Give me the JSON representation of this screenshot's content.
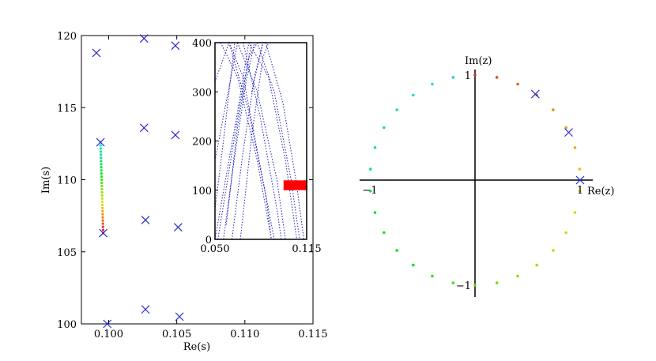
{
  "chart_data": [
    {
      "id": "left",
      "type": "scatter",
      "xlabel": "Re(s)",
      "ylabel": "Im(s)",
      "xlim": [
        0.098,
        0.115
      ],
      "ylim": [
        100,
        120
      ],
      "xticks": [
        0.1,
        0.105,
        0.11,
        0.115
      ],
      "xtick_labels": [
        "0.100",
        "0.105",
        "0.110",
        "0.115"
      ],
      "yticks": [
        100,
        105,
        110,
        115,
        120
      ],
      "ytick_labels": [
        "100",
        "105",
        "110",
        "115",
        "120"
      ],
      "grid": false,
      "marker_color": "#2b2bd6",
      "series": [
        {
          "marker": "x",
          "points": [
            [
              0.0991,
              118.8
            ],
            [
              0.1026,
              119.8
            ],
            [
              0.1049,
              119.3
            ],
            [
              0.0994,
              112.6
            ],
            [
              0.1026,
              113.6
            ],
            [
              0.1049,
              113.1
            ],
            [
              0.0996,
              106.3
            ],
            [
              0.1027,
              107.2
            ],
            [
              0.1051,
              106.7
            ],
            [
              0.0999,
              100.0
            ],
            [
              0.1027,
              101.0
            ],
            [
              0.1052,
              100.5
            ]
          ]
        },
        {
          "marker": "dot-gradient",
          "gradient": "rainbow",
          "from": [
            0.0994,
            112.6
          ],
          "to": [
            0.0996,
            106.3
          ],
          "count": 30
        }
      ]
    },
    {
      "id": "inset",
      "type": "line",
      "xlim": [
        0.05,
        0.115
      ],
      "ylim": [
        0,
        400
      ],
      "xticks": [
        0.05,
        0.115
      ],
      "xtick_labels": [
        "0.050",
        "0.115"
      ],
      "yticks": [
        0,
        100,
        200,
        300,
        400
      ],
      "ytick_labels": [
        "0",
        "100",
        "200",
        "300",
        "400"
      ],
      "line_style": "dotted",
      "line_color": "#1f1fbf",
      "highlight_box": {
        "x": [
          0.0986,
          0.115
        ],
        "y": [
          100,
          120
        ],
        "color": "#ff0000"
      },
      "series": [
        {
          "points": [
            [
              0.05,
              0
            ],
            [
              0.058,
              130
            ],
            [
              0.066,
              260
            ],
            [
              0.074,
              400
            ]
          ]
        },
        {
          "points": [
            [
              0.05,
              60
            ],
            [
              0.056,
              200
            ],
            [
              0.06,
              300
            ],
            [
              0.064,
              400
            ]
          ]
        },
        {
          "points": [
            [
              0.05,
              160
            ],
            [
              0.058,
              280
            ],
            [
              0.066,
              400
            ]
          ]
        },
        {
          "points": [
            [
              0.052,
              0
            ],
            [
              0.06,
              140
            ],
            [
              0.068,
              280
            ],
            [
              0.076,
              400
            ]
          ]
        },
        {
          "points": [
            [
              0.056,
              0
            ],
            [
              0.064,
              170
            ],
            [
              0.072,
              320
            ],
            [
              0.078,
              400
            ]
          ]
        },
        {
          "points": [
            [
              0.058,
              30
            ],
            [
              0.066,
              230
            ],
            [
              0.074,
              370
            ],
            [
              0.08,
              400
            ]
          ]
        },
        {
          "points": [
            [
              0.062,
              0
            ],
            [
              0.07,
              180
            ],
            [
              0.078,
              330
            ],
            [
              0.084,
              400
            ]
          ]
        },
        {
          "points": [
            [
              0.068,
              0
            ],
            [
              0.076,
              210
            ],
            [
              0.084,
              370
            ],
            [
              0.088,
              400
            ]
          ]
        },
        {
          "points": [
            [
              0.05,
              320
            ],
            [
              0.06,
              400
            ],
            [
              0.07,
              330
            ],
            [
              0.082,
              150
            ],
            [
              0.092,
              0
            ]
          ]
        },
        {
          "points": [
            [
              0.054,
              400
            ],
            [
              0.066,
              330
            ],
            [
              0.08,
              160
            ],
            [
              0.09,
              0
            ]
          ]
        },
        {
          "points": [
            [
              0.066,
              400
            ],
            [
              0.08,
              300
            ],
            [
              0.094,
              120
            ],
            [
              0.1,
              0
            ]
          ]
        },
        {
          "points": [
            [
              0.074,
              400
            ],
            [
              0.088,
              330
            ],
            [
              0.1,
              160
            ],
            [
              0.108,
              0
            ]
          ]
        },
        {
          "points": [
            [
              0.08,
              400
            ],
            [
              0.092,
              300
            ],
            [
              0.104,
              120
            ],
            [
              0.11,
              0
            ]
          ]
        },
        {
          "points": [
            [
              0.086,
              400
            ],
            [
              0.098,
              280
            ],
            [
              0.108,
              110
            ],
            [
              0.113,
              0
            ]
          ]
        },
        {
          "points": [
            [
              0.06,
              400
            ],
            [
              0.074,
              260
            ],
            [
              0.086,
              90
            ],
            [
              0.09,
              0
            ]
          ]
        },
        {
          "points": [
            [
              0.076,
              300
            ],
            [
              0.084,
              400
            ]
          ]
        },
        {
          "points": [
            [
              0.07,
              400
            ],
            [
              0.082,
              250
            ],
            [
              0.094,
              60
            ],
            [
              0.097,
              0
            ]
          ]
        }
      ]
    },
    {
      "id": "right",
      "type": "scatter",
      "xlabel": "Re(z)",
      "ylabel": "Im(z)",
      "xlim": [
        -1.1,
        1.1
      ],
      "ylim": [
        -1.12,
        1.12
      ],
      "x_axis_labels": [
        {
          "x": -1,
          "text": "−1"
        },
        {
          "x": 1,
          "text": "1"
        }
      ],
      "y_axis_labels": [
        {
          "y": 1,
          "text": "1"
        },
        {
          "y": -1,
          "text": "−1"
        }
      ],
      "unit_circle_dots": {
        "count": 30,
        "gradient": "rainbow"
      },
      "x_markers": [
        {
          "angle_deg": 0
        },
        {
          "angle_deg": 27
        },
        {
          "angle_deg": 55
        }
      ],
      "marker_color": "#2b2bd6",
      "grid": false
    }
  ]
}
